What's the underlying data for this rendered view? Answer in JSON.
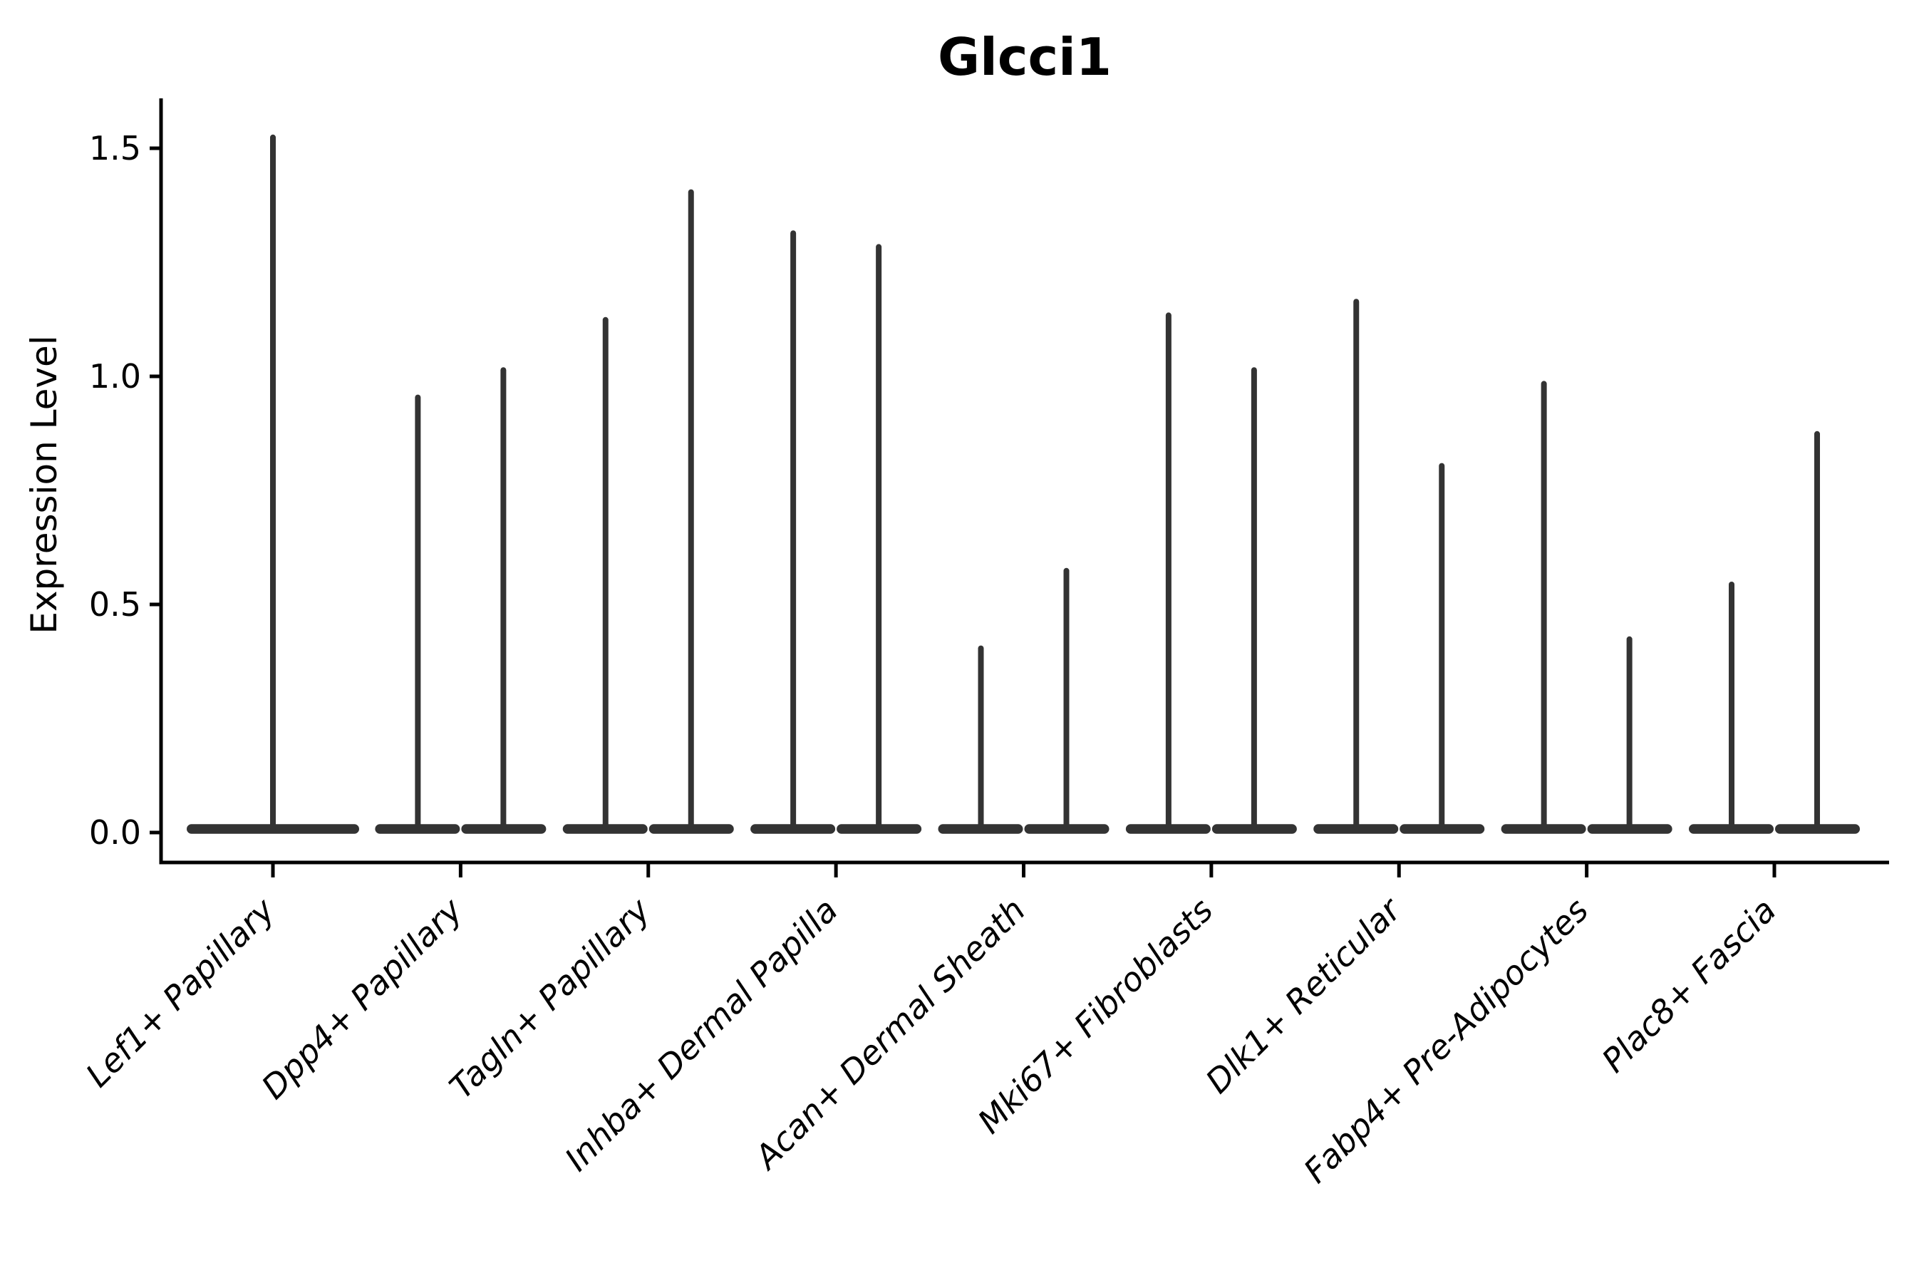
{
  "chart_data": {
    "type": "violin",
    "title": "Glcci1",
    "ylabel": "Expression Level",
    "xlabel": "",
    "ylim": [
      -0.07,
      1.6
    ],
    "ytick_values": [
      0,
      0.5,
      1,
      1.5
    ],
    "ytick_labels": [
      "0.0",
      "0.5",
      "1.0",
      "1.5"
    ],
    "grid": false,
    "legend": "none",
    "violin_color": "#333333",
    "axis_color": "#000000",
    "distribution_note": "Expression is ~0 for nearly all cells: every violin renders as a flat disc at 0 with a thin vertical spike reaching the maximum expression value. Category 1 has a single full-width violin; categories 2-9 each contain two half-width violins (split), one spike per violin.",
    "categories": [
      "Lef1+ Papillary",
      "Dpp4+ Papillary",
      "Tagln+ Papillary",
      "Inhba+ Dermal Papilla",
      "Acan+ Dermal Sheath",
      "Mki67+ Fibroblasts",
      "Dlk1+ Reticular",
      "Fabp4+ Pre-Adipocytes",
      "Plac8+ Fascia"
    ],
    "violins": [
      {
        "category": "Lef1+ Papillary",
        "split": false,
        "spike_maxima": [
          1.53
        ]
      },
      {
        "category": "Dpp4+ Papillary",
        "split": true,
        "spike_maxima": [
          0.96,
          1.02
        ]
      },
      {
        "category": "Tagln+ Papillary",
        "split": true,
        "spike_maxima": [
          1.13,
          1.41
        ]
      },
      {
        "category": "Inhba+ Dermal Papilla",
        "split": true,
        "spike_maxima": [
          1.32,
          1.29
        ]
      },
      {
        "category": "Acan+ Dermal Sheath",
        "split": true,
        "spike_maxima": [
          0.41,
          0.58
        ]
      },
      {
        "category": "Mki67+ Fibroblasts",
        "split": true,
        "spike_maxima": [
          1.14,
          1.02
        ]
      },
      {
        "category": "Dlk1+ Reticular",
        "split": true,
        "spike_maxima": [
          1.17,
          0.81
        ]
      },
      {
        "category": "Fabp4+ Pre-Adipocytes",
        "split": true,
        "spike_maxima": [
          0.99,
          0.43
        ]
      },
      {
        "category": "Plac8+ Fascia",
        "split": true,
        "spike_maxima": [
          0.55,
          0.88
        ]
      }
    ]
  }
}
